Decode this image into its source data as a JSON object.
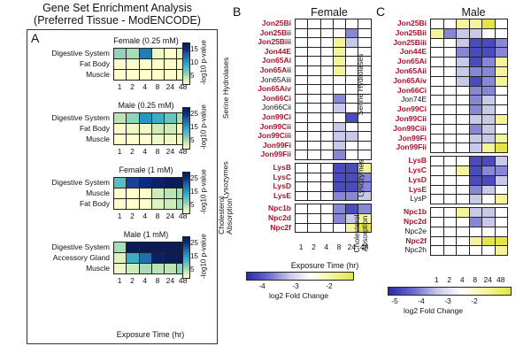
{
  "colors": {
    "gene_red": "#b0122a",
    "ea_scale": [
      "#ffffcc",
      "#c7e9b4",
      "#7fcdbb",
      "#41b6c4",
      "#1d91c0",
      "#225ea8",
      "#0c2c84",
      "#081d58"
    ],
    "fc_scale": [
      "#2b2bb0",
      "#7b7bd4",
      "#c8c8e8",
      "#ffffff",
      "#f3f38a",
      "#e8e84a"
    ]
  },
  "figure_title_line1": "Gene Set Enrichment Analysis",
  "figure_title_line2": "(Preferred Tissue - ModENCODE)",
  "panelA": {
    "label": "A",
    "xlabel": "Exposure Time (hr)",
    "x_ticks": [
      "1",
      "2",
      "4",
      "8",
      "24",
      "48"
    ],
    "colorbar_label": "-log10 p-value",
    "subplots": [
      {
        "title": "Female (0.25 mM)",
        "rows": [
          "Digestive System",
          "Fat Body",
          "Muscle"
        ],
        "cbar_ticks": [
          "15",
          "10",
          "5"
        ],
        "values": [
          [
            7,
            6,
            16,
            2,
            1,
            2
          ],
          [
            1,
            1,
            1,
            1,
            1,
            1
          ],
          [
            1,
            1,
            1,
            1,
            1,
            1
          ]
        ]
      },
      {
        "title": "Male (0.25 mM)",
        "rows": [
          "Digestive System",
          "Fat Body",
          "Muscle"
        ],
        "cbar_ticks": [
          "25",
          "15",
          "5"
        ],
        "values": [
          [
            5,
            7,
            14,
            12,
            9,
            6
          ],
          [
            1,
            2,
            2,
            4,
            4,
            2
          ],
          [
            1,
            1,
            1,
            2,
            2,
            2
          ]
        ]
      },
      {
        "title": "Female (1 mM)",
        "rows": [
          "Digestive System",
          "Muscle",
          "Fat Body"
        ],
        "cbar_ticks": [
          "25",
          "15",
          "5"
        ],
        "values": [
          [
            10,
            20,
            22,
            24,
            25,
            25
          ],
          [
            1,
            1,
            1,
            4,
            5,
            6
          ],
          [
            1,
            1,
            1,
            3,
            4,
            6
          ]
        ]
      },
      {
        "title": "Male (1 mM)",
        "rows": [
          "Digestive System",
          "Accessory Gland",
          "Muscle"
        ],
        "cbar_ticks": [
          "25",
          "15",
          "5"
        ],
        "values": [
          [
            6,
            25,
            25,
            25,
            25,
            25
          ],
          [
            3,
            12,
            17,
            24,
            25,
            25
          ],
          [
            2,
            4,
            6,
            5,
            5,
            7
          ]
        ]
      }
    ]
  },
  "panelB": {
    "label": "B",
    "title": "Female",
    "xlabel": "Exposure Time (hr)",
    "x_ticks": [
      "1",
      "2",
      "4",
      "8",
      "24",
      "48"
    ],
    "colorbar_ticks": [
      "-4",
      "-3",
      "-2"
    ],
    "colorbar_label": "log2 Fold Change",
    "groups": [
      {
        "name": "Serine Hydrolases",
        "genes": [
          {
            "name": "Jon25Bi",
            "red": true,
            "values": [
              0,
              0,
              0,
              0,
              0,
              0
            ]
          },
          {
            "name": "Jon25Bii",
            "red": true,
            "values": [
              0,
              0,
              0,
              0,
              -2,
              0
            ]
          },
          {
            "name": "Jon25Biii",
            "red": true,
            "values": [
              0,
              0,
              0,
              1,
              -1,
              0
            ]
          },
          {
            "name": "Jon44E",
            "red": true,
            "values": [
              0,
              0,
              0,
              1,
              0,
              0
            ]
          },
          {
            "name": "Jon65Ai",
            "red": true,
            "values": [
              0,
              0,
              0,
              1,
              0,
              0
            ]
          },
          {
            "name": "Jon65Aii",
            "red": true,
            "values": [
              0,
              0,
              0,
              1,
              0,
              0
            ]
          },
          {
            "name": "Jon65Aiii",
            "red": false,
            "values": [
              0,
              0,
              0,
              0,
              0,
              0
            ]
          },
          {
            "name": "Jon65Aiv",
            "red": true,
            "values": [
              0,
              0,
              0,
              0,
              0,
              0
            ]
          },
          {
            "name": "Jon66Ci",
            "red": true,
            "values": [
              0,
              0,
              0,
              -2,
              0,
              0
            ]
          },
          {
            "name": "Jon66Cii",
            "red": false,
            "values": [
              0,
              0,
              0,
              -1,
              0,
              0
            ]
          },
          {
            "name": "Jon99Ci",
            "red": true,
            "values": [
              0,
              0,
              0,
              0,
              -3,
              0
            ]
          },
          {
            "name": "Jon99Cii",
            "red": true,
            "values": [
              0,
              0,
              0,
              -1,
              0,
              0
            ]
          },
          {
            "name": "Jon99Ciii",
            "red": true,
            "values": [
              0,
              0,
              0,
              -1,
              -1,
              0
            ]
          },
          {
            "name": "Jon99Fi",
            "red": true,
            "values": [
              0,
              0,
              0,
              -1,
              0,
              0
            ]
          },
          {
            "name": "Jon99Fii",
            "red": true,
            "values": [
              0,
              0,
              0,
              -2,
              0,
              0
            ]
          }
        ]
      },
      {
        "name": "Lysozymes",
        "genes": [
          {
            "name": "LysB",
            "red": true,
            "values": [
              0,
              0,
              0,
              -3,
              -3,
              1
            ]
          },
          {
            "name": "LysC",
            "red": true,
            "values": [
              0,
              0,
              0,
              -3,
              -3,
              -2
            ]
          },
          {
            "name": "LysD",
            "red": true,
            "values": [
              0,
              0,
              0,
              -3,
              -3,
              -2
            ]
          },
          {
            "name": "LysE",
            "red": true,
            "values": [
              0,
              0,
              0,
              -2,
              -2,
              -1
            ]
          }
        ]
      },
      {
        "name": "Cholesterol Absorption",
        "genes": [
          {
            "name": "Npc1b",
            "red": true,
            "values": [
              0,
              0,
              0,
              -2,
              -3,
              -2
            ]
          },
          {
            "name": "Npc2d",
            "red": true,
            "values": [
              0,
              0,
              0,
              -2,
              -1,
              1
            ]
          },
          {
            "name": "Npc2f",
            "red": true,
            "values": [
              0,
              0,
              0,
              0,
              1,
              2
            ]
          }
        ]
      }
    ]
  },
  "panelC": {
    "label": "C",
    "title": "Male",
    "x_ticks": [
      "1",
      "2",
      "4",
      "8",
      "24",
      "48"
    ],
    "colorbar_ticks": [
      "-5",
      "-4",
      "-3",
      "-2"
    ],
    "colorbar_label": "log2 Fold Change",
    "groups": [
      {
        "name": "Serine Hydrolases",
        "genes": [
          {
            "name": "Jon25Bi",
            "red": true,
            "values": [
              0,
              0,
              1,
              1,
              2,
              0
            ]
          },
          {
            "name": "Jon25Bii",
            "red": true,
            "values": [
              1,
              -2,
              -1,
              -1,
              0,
              0
            ]
          },
          {
            "name": "Jon25Biii",
            "red": true,
            "values": [
              0,
              0,
              -1,
              -3,
              -3,
              -2
            ]
          },
          {
            "name": "Jon44E",
            "red": true,
            "values": [
              0,
              0,
              -2,
              -3,
              -3,
              -2
            ]
          },
          {
            "name": "Jon65Ai",
            "red": true,
            "values": [
              0,
              0,
              -1,
              -3,
              -2,
              1
            ]
          },
          {
            "name": "Jon65Aii",
            "red": true,
            "values": [
              0,
              0,
              -1,
              -2,
              -2,
              1
            ]
          },
          {
            "name": "Jon65Aiv",
            "red": true,
            "values": [
              0,
              0,
              -1,
              -3,
              -2,
              1
            ]
          },
          {
            "name": "Jon66Ci",
            "red": true,
            "values": [
              0,
              0,
              0,
              -2,
              -2,
              0
            ]
          },
          {
            "name": "Jon74E",
            "red": false,
            "values": [
              0,
              0,
              0,
              -2,
              -1,
              0
            ]
          },
          {
            "name": "Jon99Ci",
            "red": true,
            "values": [
              0,
              0,
              0,
              -2,
              -1,
              0
            ]
          },
          {
            "name": "Jon99Cii",
            "red": true,
            "values": [
              0,
              0,
              0,
              -1,
              -1,
              1
            ]
          },
          {
            "name": "Jon99Ciii",
            "red": true,
            "values": [
              0,
              0,
              0,
              -2,
              -1,
              0
            ]
          },
          {
            "name": "Jon99Fi",
            "red": true,
            "values": [
              0,
              0,
              0,
              -1,
              -1,
              1
            ]
          },
          {
            "name": "Jon99Fii",
            "red": true,
            "values": [
              0,
              0,
              0,
              -1,
              1,
              2
            ]
          }
        ]
      },
      {
        "name": "Lysozymes",
        "genes": [
          {
            "name": "LysB",
            "red": true,
            "values": [
              0,
              0,
              0,
              -3,
              -3,
              -1
            ]
          },
          {
            "name": "LysC",
            "red": true,
            "values": [
              0,
              0,
              1,
              -3,
              -2,
              -2
            ]
          },
          {
            "name": "LysD",
            "red": true,
            "values": [
              0,
              0,
              0,
              -3,
              -3,
              -1
            ]
          },
          {
            "name": "LysE",
            "red": true,
            "values": [
              0,
              0,
              0,
              -2,
              -1,
              0
            ]
          },
          {
            "name": "LysP",
            "red": false,
            "values": [
              0,
              0,
              0,
              -1,
              0,
              1
            ]
          }
        ]
      },
      {
        "name": "Cholesterol Absorption",
        "genes": [
          {
            "name": "Npc1b",
            "red": true,
            "values": [
              0,
              0,
              1,
              -1,
              -1,
              0
            ]
          },
          {
            "name": "Npc2d",
            "red": true,
            "values": [
              0,
              0,
              0,
              -2,
              -1,
              0
            ]
          },
          {
            "name": "Npc2e",
            "red": false,
            "values": [
              0,
              0,
              0,
              0,
              0,
              0
            ]
          },
          {
            "name": "Npc2f",
            "red": true,
            "values": [
              0,
              0,
              0,
              1,
              2,
              2
            ]
          },
          {
            "name": "Npc2h",
            "red": false,
            "values": [
              0,
              0,
              0,
              0,
              0,
              1
            ]
          }
        ]
      }
    ]
  },
  "chart_data": [
    {
      "type": "heatmap",
      "title": "Female (0.25 mM)",
      "xlabel": "Exposure Time (hr)",
      "ylabel": "",
      "categories": [
        "1",
        "2",
        "4",
        "8",
        "24",
        "48"
      ],
      "series": [
        {
          "name": "Digestive System",
          "values": [
            7,
            6,
            16,
            2,
            1,
            2
          ]
        },
        {
          "name": "Fat Body",
          "values": [
            1,
            1,
            1,
            1,
            1,
            1
          ]
        },
        {
          "name": "Muscle",
          "values": [
            1,
            1,
            1,
            1,
            1,
            1
          ]
        }
      ]
    },
    {
      "type": "heatmap",
      "title": "Male (0.25 mM)",
      "xlabel": "Exposure Time (hr)",
      "categories": [
        "1",
        "2",
        "4",
        "8",
        "24",
        "48"
      ],
      "series": [
        {
          "name": "Digestive System",
          "values": [
            5,
            7,
            14,
            12,
            9,
            6
          ]
        },
        {
          "name": "Fat Body",
          "values": [
            1,
            2,
            2,
            4,
            4,
            2
          ]
        },
        {
          "name": "Muscle",
          "values": [
            1,
            1,
            1,
            2,
            2,
            2
          ]
        }
      ]
    },
    {
      "type": "heatmap",
      "title": "Female (1 mM)",
      "xlabel": "Exposure Time (hr)",
      "categories": [
        "1",
        "2",
        "4",
        "8",
        "24",
        "48"
      ],
      "series": [
        {
          "name": "Digestive System",
          "values": [
            10,
            20,
            22,
            24,
            25,
            25
          ]
        },
        {
          "name": "Muscle",
          "values": [
            1,
            1,
            1,
            4,
            5,
            6
          ]
        },
        {
          "name": "Fat Body",
          "values": [
            1,
            1,
            1,
            3,
            4,
            6
          ]
        }
      ]
    },
    {
      "type": "heatmap",
      "title": "Male (1 mM)",
      "xlabel": "Exposure Time (hr)",
      "categories": [
        "1",
        "2",
        "4",
        "8",
        "24",
        "48"
      ],
      "series": [
        {
          "name": "Digestive System",
          "values": [
            6,
            25,
            25,
            25,
            25,
            25
          ]
        },
        {
          "name": "Accessory Gland",
          "values": [
            3,
            12,
            17,
            24,
            25,
            25
          ]
        },
        {
          "name": "Muscle",
          "values": [
            2,
            4,
            6,
            5,
            5,
            7
          ]
        }
      ]
    },
    {
      "type": "heatmap",
      "title": "Female",
      "xlabel": "Exposure Time (hr)",
      "ylabel": "log2 Fold Change",
      "categories": [
        "1",
        "2",
        "4",
        "8",
        "24",
        "48"
      ],
      "note": "series values = panelB gene values"
    },
    {
      "type": "heatmap",
      "title": "Male",
      "ylabel": "log2 Fold Change",
      "categories": [
        "1",
        "2",
        "4",
        "8",
        "24",
        "48"
      ],
      "note": "series values = panelC gene values"
    }
  ]
}
